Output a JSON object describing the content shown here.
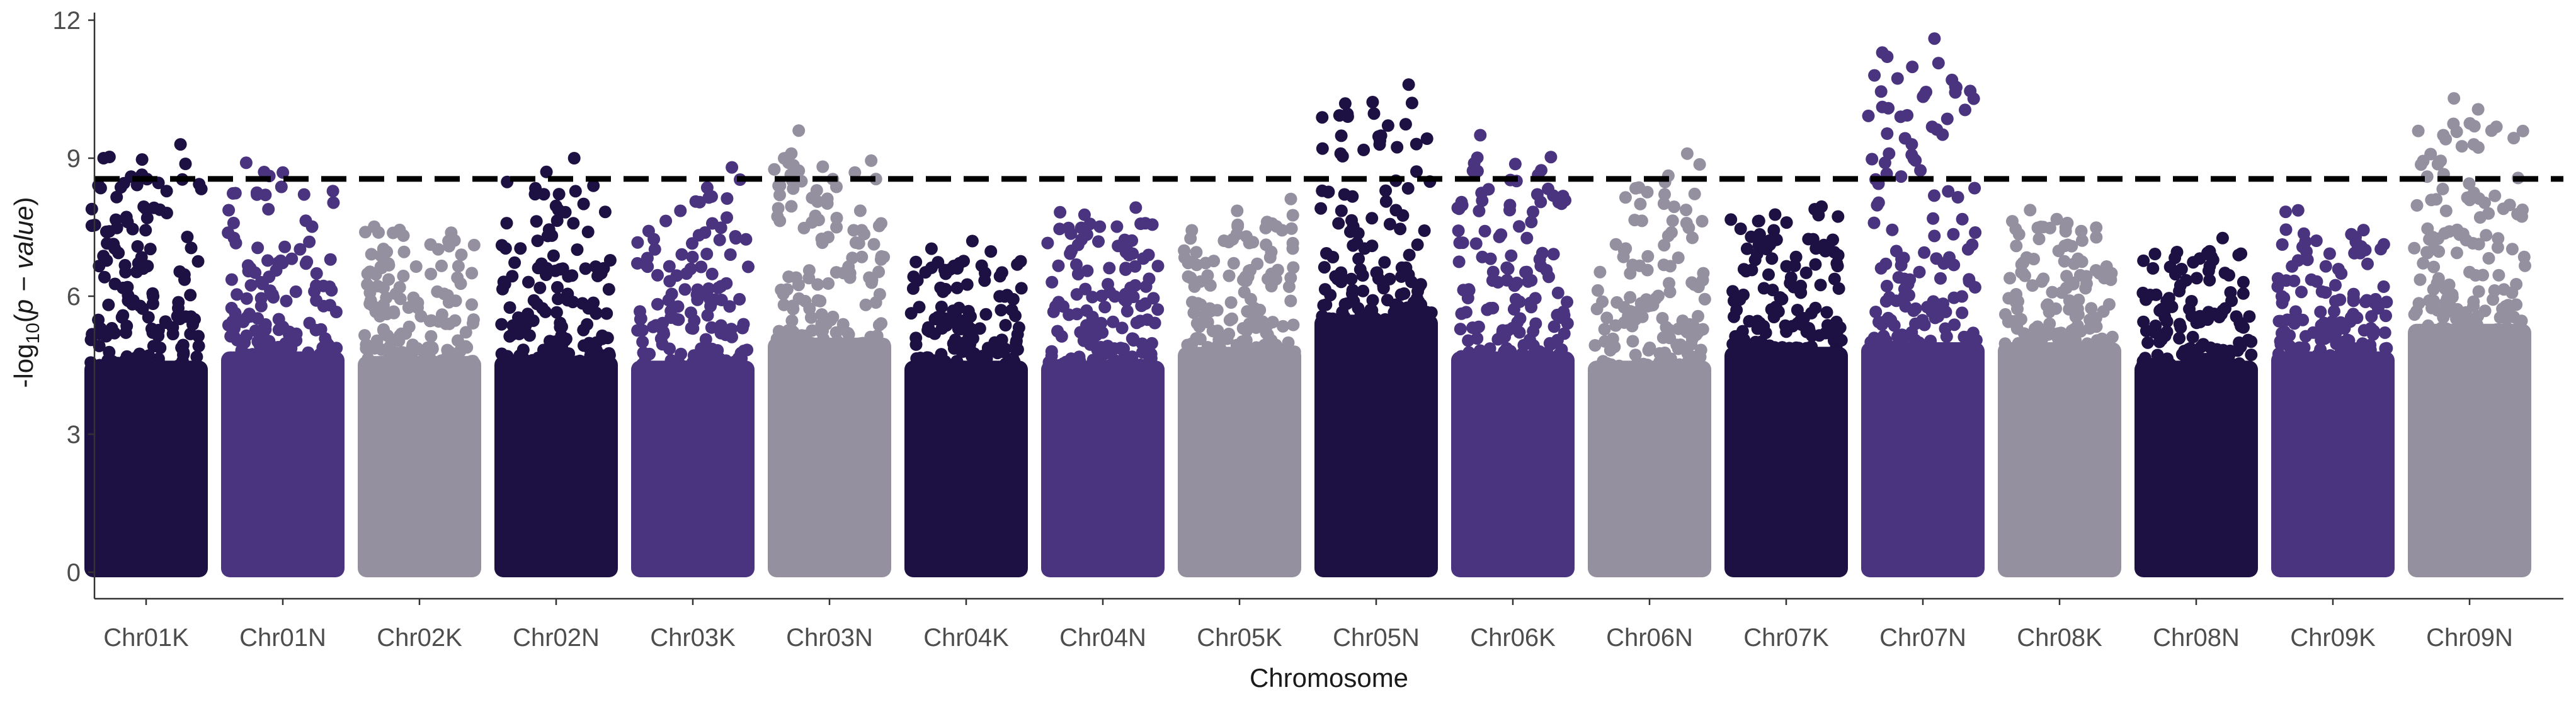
{
  "chart_data": {
    "type": "scatter",
    "subtype": "manhattan",
    "title": "",
    "xlabel": "Chromosome",
    "ylabel": "-log10(p − value)",
    "ylabel_parts": {
      "prefix": "-log",
      "sub": "10",
      "open": "(",
      "var": "p − value",
      "close": ")"
    },
    "ylim": [
      0,
      12
    ],
    "yticks": [
      0,
      3,
      6,
      9,
      12
    ],
    "threshold": 8.55,
    "grid": false,
    "legend": "none",
    "palette": {
      "dark": "#1c1142",
      "mid": "#4a347f",
      "light": "#9590a0",
      "threshold": "#000000"
    },
    "chromosomes": [
      {
        "name": "Chr01K",
        "color": "dark",
        "base": 6.0,
        "max": 9.3
      },
      {
        "name": "Chr01N",
        "color": "mid",
        "base": 6.2,
        "max": 8.9
      },
      {
        "name": "Chr02K",
        "color": "light",
        "base": 6.1,
        "max": 8.0
      },
      {
        "name": "Chr02N",
        "color": "dark",
        "base": 6.1,
        "max": 9.0
      },
      {
        "name": "Chr03K",
        "color": "mid",
        "base": 6.0,
        "max": 8.8
      },
      {
        "name": "Chr03N",
        "color": "light",
        "base": 6.5,
        "max": 9.6
      },
      {
        "name": "Chr04K",
        "color": "dark",
        "base": 6.0,
        "max": 7.4
      },
      {
        "name": "Chr04N",
        "color": "mid",
        "base": 6.0,
        "max": 8.2
      },
      {
        "name": "Chr05K",
        "color": "light",
        "base": 6.3,
        "max": 8.4
      },
      {
        "name": "Chr05N",
        "color": "dark",
        "base": 7.0,
        "max": 10.6
      },
      {
        "name": "Chr06K",
        "color": "mid",
        "base": 6.2,
        "max": 9.5
      },
      {
        "name": "Chr06N",
        "color": "light",
        "base": 6.0,
        "max": 9.1
      },
      {
        "name": "Chr07K",
        "color": "dark",
        "base": 6.3,
        "max": 8.5
      },
      {
        "name": "Chr07N",
        "color": "mid",
        "base": 6.4,
        "max": 11.6
      },
      {
        "name": "Chr08K",
        "color": "light",
        "base": 6.4,
        "max": 8.3
      },
      {
        "name": "Chr08N",
        "color": "dark",
        "base": 6.0,
        "max": 7.6
      },
      {
        "name": "Chr09K",
        "color": "mid",
        "base": 6.2,
        "max": 8.1
      },
      {
        "name": "Chr09N",
        "color": "light",
        "base": 6.8,
        "max": 10.3
      }
    ],
    "top_hits": [
      {
        "chrom": "Chr01K",
        "y": 9.3
      },
      {
        "chrom": "Chr01K",
        "y": 9.0
      },
      {
        "chrom": "Chr01N",
        "y": 8.9
      },
      {
        "chrom": "Chr02N",
        "y": 9.0
      },
      {
        "chrom": "Chr03K",
        "y": 8.8
      },
      {
        "chrom": "Chr03N",
        "y": 9.6
      },
      {
        "chrom": "Chr05N",
        "y": 10.6
      },
      {
        "chrom": "Chr05N",
        "y": 10.2
      },
      {
        "chrom": "Chr05N",
        "y": 9.1
      },
      {
        "chrom": "Chr06K",
        "y": 9.5
      },
      {
        "chrom": "Chr06N",
        "y": 9.1
      },
      {
        "chrom": "Chr07N",
        "y": 11.6
      },
      {
        "chrom": "Chr07N",
        "y": 9.9
      },
      {
        "chrom": "Chr07N",
        "y": 9.1
      },
      {
        "chrom": "Chr07N",
        "y": 8.9
      },
      {
        "chrom": "Chr09N",
        "y": 10.3
      },
      {
        "chrom": "Chr09N",
        "y": 9.3
      }
    ]
  }
}
